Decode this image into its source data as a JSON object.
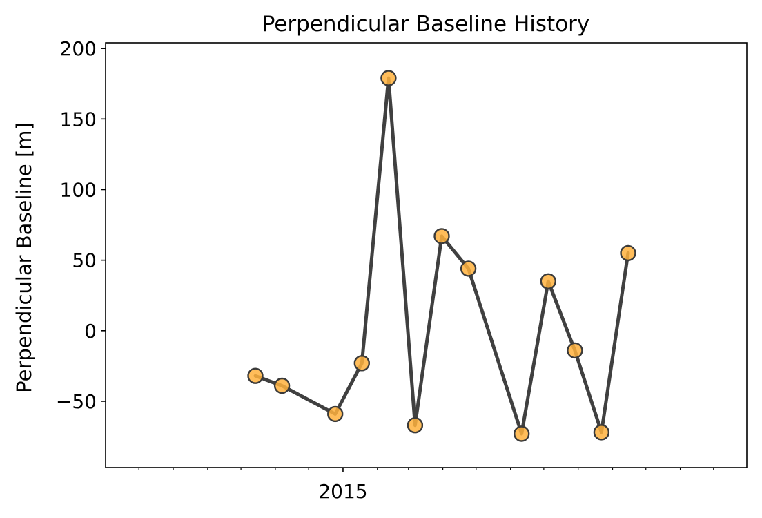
{
  "chart_data": {
    "type": "line",
    "title": "Perpendicular Baseline History",
    "xlabel": "",
    "ylabel": "Perpendicular Baseline [m]",
    "x_axis": {
      "kind": "date",
      "range": [
        "2014-06-01",
        "2015-12-31"
      ],
      "major_ticks": [
        {
          "value": "2015-01-01",
          "label": "2015"
        }
      ],
      "minor_ticks": [
        "2014-07-01",
        "2014-08-01",
        "2014-09-01",
        "2014-10-01",
        "2014-11-01",
        "2014-12-01",
        "2015-02-01",
        "2015-03-01",
        "2015-04-01",
        "2015-05-01",
        "2015-06-01",
        "2015-07-01",
        "2015-08-01",
        "2015-09-01",
        "2015-10-01",
        "2015-11-01",
        "2015-12-01"
      ]
    },
    "y_axis": {
      "range": [
        -97,
        204
      ],
      "ticks": [
        {
          "value": -50,
          "label": "−50"
        },
        {
          "value": 0,
          "label": "0"
        },
        {
          "value": 50,
          "label": "50"
        },
        {
          "value": 100,
          "label": "100"
        },
        {
          "value": 150,
          "label": "150"
        },
        {
          "value": 200,
          "label": "200"
        }
      ]
    },
    "grid": false,
    "legend": "none",
    "series": [
      {
        "x": [
          "2014-10-14",
          "2014-11-07",
          "2014-12-25",
          "2015-01-18",
          "2015-02-11",
          "2015-03-07",
          "2015-03-31",
          "2015-04-24",
          "2015-06-11",
          "2015-07-05",
          "2015-07-29",
          "2015-08-22",
          "2015-09-15"
        ],
        "y": [
          -32,
          -39,
          -59,
          -23,
          179,
          -67,
          67,
          44,
          -73,
          35,
          -14,
          -72,
          55
        ]
      }
    ],
    "colors": {
      "line": "#404040",
      "marker_fill": "#ffb13d",
      "marker_edge": "#3a3a3a",
      "axes": "#000000"
    }
  }
}
